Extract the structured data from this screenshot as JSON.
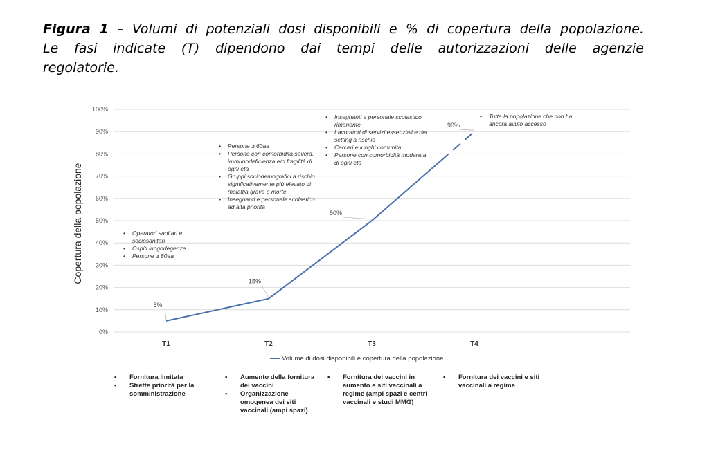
{
  "caption": {
    "lead": "Figura 1",
    "dash": " – ",
    "line1": "Volumi di potenziali dosi disponibili e % di copertura della popolazione.",
    "line2": "Le fasi indicate (T) dipendono dai tempi delle autorizzazioni delle agenzie",
    "line3": "regolatorie."
  },
  "chart_data": {
    "type": "line",
    "categories": [
      "T1",
      "T2",
      "T3",
      "T4"
    ],
    "series": [
      {
        "name": "Volume di dosi disponibili e copertura della popolazione",
        "values": [
          5,
          15,
          50,
          90
        ],
        "data_labels": [
          "5%",
          "15%",
          "50%",
          "90%"
        ],
        "color": "#4a6fae",
        "style_note": "solid from T1 to about 77%, then dashed to T4"
      }
    ],
    "ylabel": "Copertura della popolazione",
    "xlabel": "",
    "ylim": [
      0,
      100
    ],
    "yticks": [
      "0%",
      "10%",
      "20%",
      "30%",
      "40%",
      "50%",
      "60%",
      "70%",
      "80%",
      "90%",
      "100%"
    ],
    "grid": true,
    "legend_position": "bottom",
    "annotations": [
      [
        "Operatori sanitari e sociosanitari",
        "Ospiti lungodegenze",
        "Persone ≥ 80aa"
      ],
      [
        "Persone ≥ 60aa",
        "Persone con comorbidità severa, immunodeficienza e/o fragilità di ogni età",
        "Gruppi sociodemografici a rischio significativamente più elevato di malattia grave o morte",
        "Insegnanti e personale scolastico ad alta priorità"
      ],
      [
        "Insegnanti e personale scolastico rimanente",
        "Lavoratori di servizi essenziali e dei setting a rischio",
        "Carceri e luoghi comunità",
        "Persone con comorbidità moderata di ogni età"
      ],
      [
        "Tutta la popolazione che non ha ancora avuto accesso"
      ]
    ]
  },
  "bottom_notes": [
    [
      "Fornitura limitata",
      "Strette priorità per la somministrazione"
    ],
    [
      "Aumento della fornitura dei vaccini",
      "Organizzazione omogenea dei siti vaccinali (ampi spazi)"
    ],
    [
      "Fornitura dei vaccini in aumento e siti vaccinali a regime (ampi spazi e centri vaccinali e studi MMG)"
    ],
    [
      "Fornitura dei vaccini e siti vaccinali a regime"
    ]
  ]
}
